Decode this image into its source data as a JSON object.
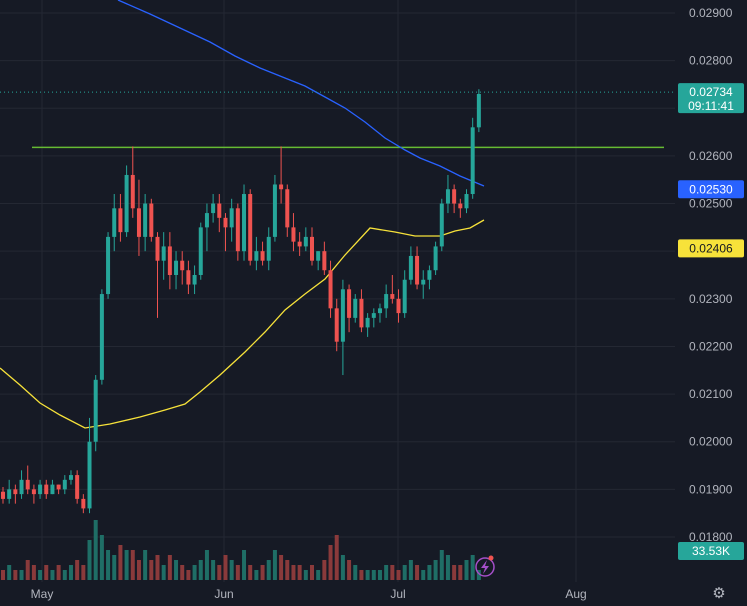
{
  "chart_data": {
    "type": "candlestick",
    "x_labels": [
      "May",
      "Jun",
      "Jul",
      "Aug"
    ],
    "y_ticks": [
      "0.02900",
      "0.02800",
      "0.02600",
      "0.02500",
      "0.02300",
      "0.02200",
      "0.02100",
      "0.02000",
      "0.01900",
      "0.01800"
    ],
    "ylim": [
      0.0178,
      0.0293
    ],
    "grid": true,
    "last_price": "0.02734",
    "countdown": "09:11:41",
    "ma_blue_value": "0.02530",
    "ma_yellow_value": "0.02406",
    "volume_value": "33.53K",
    "resistance_level": 0.02618,
    "candles": [
      [
        0.01895,
        0.01905,
        0.0187,
        0.0188
      ],
      [
        0.0188,
        0.0192,
        0.0187,
        0.019
      ],
      [
        0.019,
        0.0191,
        0.0187,
        0.0189
      ],
      [
        0.0189,
        0.0194,
        0.0188,
        0.0192
      ],
      [
        0.0192,
        0.0195,
        0.0189,
        0.019
      ],
      [
        0.019,
        0.0191,
        0.0187,
        0.0189
      ],
      [
        0.0189,
        0.0192,
        0.0188,
        0.0191
      ],
      [
        0.0191,
        0.0192,
        0.0188,
        0.0189
      ],
      [
        0.0189,
        0.0192,
        0.0189,
        0.0191
      ],
      [
        0.0191,
        0.0191,
        0.0189,
        0.019
      ],
      [
        0.019,
        0.0193,
        0.0189,
        0.0192
      ],
      [
        0.0192,
        0.0194,
        0.0191,
        0.0193
      ],
      [
        0.0193,
        0.0194,
        0.0187,
        0.0188
      ],
      [
        0.0188,
        0.0189,
        0.0185,
        0.0186
      ],
      [
        0.0186,
        0.0205,
        0.0185,
        0.02
      ],
      [
        0.02,
        0.0214,
        0.0198,
        0.0213
      ],
      [
        0.0213,
        0.0232,
        0.0212,
        0.0231
      ],
      [
        0.0231,
        0.0244,
        0.023,
        0.0243
      ],
      [
        0.0243,
        0.0252,
        0.024,
        0.0249
      ],
      [
        0.0249,
        0.0252,
        0.0242,
        0.0244
      ],
      [
        0.0244,
        0.0258,
        0.0243,
        0.0256
      ],
      [
        0.0256,
        0.0262,
        0.0247,
        0.0249
      ],
      [
        0.0249,
        0.0255,
        0.0239,
        0.0243
      ],
      [
        0.0243,
        0.0252,
        0.024,
        0.025
      ],
      [
        0.025,
        0.0251,
        0.0242,
        0.0243
      ],
      [
        0.0243,
        0.0244,
        0.0226,
        0.0238
      ],
      [
        0.0238,
        0.0244,
        0.0234,
        0.0241
      ],
      [
        0.0241,
        0.0244,
        0.0232,
        0.0235
      ],
      [
        0.0235,
        0.024,
        0.0232,
        0.0238
      ],
      [
        0.0238,
        0.024,
        0.0233,
        0.0236
      ],
      [
        0.0236,
        0.0238,
        0.0231,
        0.0233
      ],
      [
        0.0233,
        0.0237,
        0.0231,
        0.0235
      ],
      [
        0.0235,
        0.0246,
        0.0234,
        0.0245
      ],
      [
        0.0245,
        0.025,
        0.024,
        0.0248
      ],
      [
        0.0248,
        0.0252,
        0.0246,
        0.025
      ],
      [
        0.025,
        0.0252,
        0.0244,
        0.0247
      ],
      [
        0.0247,
        0.0248,
        0.024,
        0.0245
      ],
      [
        0.0245,
        0.0251,
        0.0242,
        0.0249
      ],
      [
        0.0249,
        0.025,
        0.0238,
        0.024
      ],
      [
        0.024,
        0.0254,
        0.0238,
        0.0252
      ],
      [
        0.0252,
        0.0253,
        0.0237,
        0.0238
      ],
      [
        0.0238,
        0.0243,
        0.0236,
        0.024
      ],
      [
        0.024,
        0.0242,
        0.0237,
        0.0238
      ],
      [
        0.0238,
        0.0245,
        0.0236,
        0.0243
      ],
      [
        0.0243,
        0.0256,
        0.0242,
        0.0254
      ],
      [
        0.0254,
        0.0262,
        0.025,
        0.0253
      ],
      [
        0.0253,
        0.0254,
        0.0243,
        0.0245
      ],
      [
        0.0245,
        0.0248,
        0.024,
        0.0242
      ],
      [
        0.0242,
        0.0244,
        0.0239,
        0.0241
      ],
      [
        0.0241,
        0.0245,
        0.024,
        0.0243
      ],
      [
        0.0243,
        0.0245,
        0.0237,
        0.0238
      ],
      [
        0.0238,
        0.024,
        0.0236,
        0.024
      ],
      [
        0.024,
        0.0242,
        0.0235,
        0.0236
      ],
      [
        0.0236,
        0.0238,
        0.0226,
        0.0228
      ],
      [
        0.0228,
        0.023,
        0.0219,
        0.0221
      ],
      [
        0.0221,
        0.0234,
        0.0214,
        0.0232
      ],
      [
        0.0232,
        0.0233,
        0.0223,
        0.0226
      ],
      [
        0.0226,
        0.0231,
        0.0225,
        0.023
      ],
      [
        0.023,
        0.0232,
        0.0223,
        0.0224
      ],
      [
        0.0224,
        0.0227,
        0.0222,
        0.0226
      ],
      [
        0.0226,
        0.0228,
        0.0224,
        0.0227
      ],
      [
        0.0227,
        0.0229,
        0.0225,
        0.0228
      ],
      [
        0.0228,
        0.0233,
        0.0226,
        0.0231
      ],
      [
        0.0231,
        0.0235,
        0.0229,
        0.023
      ],
      [
        0.023,
        0.0232,
        0.0225,
        0.0227
      ],
      [
        0.0227,
        0.0236,
        0.0226,
        0.0234
      ],
      [
        0.0234,
        0.0241,
        0.0233,
        0.0239
      ],
      [
        0.0239,
        0.0241,
        0.0232,
        0.0233
      ],
      [
        0.0233,
        0.0236,
        0.023,
        0.0234
      ],
      [
        0.0234,
        0.0237,
        0.0232,
        0.0236
      ],
      [
        0.0236,
        0.0242,
        0.0235,
        0.0241
      ],
      [
        0.0241,
        0.0251,
        0.024,
        0.025
      ],
      [
        0.025,
        0.0256,
        0.0248,
        0.0253
      ],
      [
        0.0253,
        0.0254,
        0.0248,
        0.025
      ],
      [
        0.025,
        0.0251,
        0.0247,
        0.0249
      ],
      [
        0.0249,
        0.0253,
        0.0248,
        0.0252
      ],
      [
        0.0252,
        0.0268,
        0.0251,
        0.0266
      ],
      [
        0.0266,
        0.0274,
        0.0265,
        0.0273
      ]
    ],
    "volumes": [
      2,
      3,
      2,
      2,
      4,
      3,
      2,
      3,
      2,
      3,
      2,
      3,
      4,
      3,
      8,
      12,
      9,
      6,
      5,
      7,
      6,
      6,
      4,
      6,
      4,
      5,
      3,
      5,
      4,
      3,
      2,
      3,
      4,
      6,
      4,
      3,
      5,
      4,
      3,
      6,
      3,
      2,
      3,
      4,
      6,
      5,
      4,
      3,
      3,
      2,
      3,
      2,
      4,
      7,
      9,
      5,
      4,
      3,
      2,
      2,
      2,
      2,
      3,
      3,
      2,
      3,
      4,
      3,
      2,
      3,
      4,
      6,
      5,
      3,
      3,
      4,
      5,
      2
    ]
  },
  "colors": {
    "background": "#161a25",
    "up": "#26a69a",
    "down": "#ef5350",
    "ma_blue": "#2962ff",
    "ma_yellow": "#f7e23a",
    "resistance": "#66bb33",
    "grid": "#242833",
    "axis_text": "#b2b5be"
  },
  "icons": {
    "settings": "gear-icon",
    "lightning": "lightning-icon"
  }
}
